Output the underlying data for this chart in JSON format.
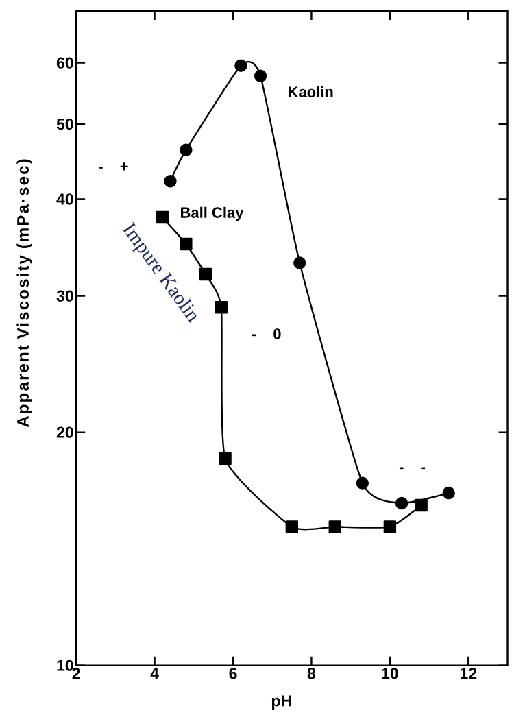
{
  "chart_data": {
    "type": "line",
    "xlabel": "pH",
    "ylabel": "Apparent Viscosity (mPa·sec)",
    "xlim": [
      2,
      13
    ],
    "xticks": [
      2,
      4,
      6,
      8,
      10,
      12
    ],
    "ylim": [
      10,
      70
    ],
    "yticks": [
      10,
      20,
      30,
      40,
      50,
      60
    ],
    "log": "y",
    "series": [
      {
        "name": "Kaolin",
        "color": "#000000",
        "marker": "circle",
        "x": [
          4.4,
          4.8,
          6.2,
          6.7,
          7.7,
          9.3,
          10.3,
          11.5
        ],
        "values": [
          42.2,
          46.3,
          59.5,
          57.7,
          33.1,
          17.2,
          16.2,
          16.7
        ]
      },
      {
        "name": "Ball Clay",
        "color": "#000000",
        "marker": "square",
        "x": [
          4.2,
          4.8,
          5.3,
          5.7,
          5.8,
          7.5,
          8.6,
          10.0,
          10.8
        ],
        "values": [
          37.9,
          35.0,
          32.0,
          29.0,
          18.5,
          15.1,
          15.1,
          15.1,
          16.1
        ]
      }
    ],
    "annotations": [
      "- +",
      "- 0",
      "- -",
      "Impure Kaolin"
    ]
  }
}
